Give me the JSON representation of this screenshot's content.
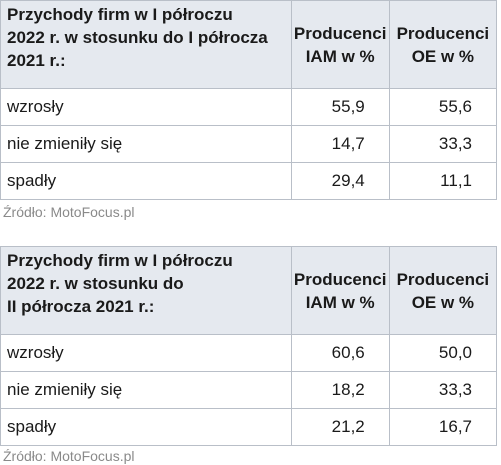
{
  "tables": [
    {
      "header": {
        "col1_lines": [
          "Przychody firm w I półroczu",
          "2022 r. w stosunku do I półrocza",
          "2021 r.:"
        ],
        "col2_lines": [
          "Producenci",
          "IAM w %"
        ],
        "col3_lines": [
          "Producenci",
          "OE w %"
        ]
      },
      "rows": [
        {
          "label": "wzrosły",
          "iam": "55,9",
          "oe": "55,6"
        },
        {
          "label": "nie zmieniły się",
          "iam": "14,7",
          "oe": "33,3"
        },
        {
          "label": "spadły",
          "iam": "29,4",
          "oe": "11,1"
        }
      ],
      "source": "Źródło: MotoFocus.pl"
    },
    {
      "header": {
        "col1_lines": [
          "Przychody firm w I półroczu",
          "2022 r. w stosunku do",
          "II półrocza 2021 r.:"
        ],
        "col2_lines": [
          "Producenci",
          "IAM w %"
        ],
        "col3_lines": [
          "Producenci",
          "OE w %"
        ]
      },
      "rows": [
        {
          "label": "wzrosły",
          "iam": "60,6",
          "oe": "50,0"
        },
        {
          "label": "nie zmieniły się",
          "iam": "18,2",
          "oe": "33,3"
        },
        {
          "label": "spadły",
          "iam": "21,2",
          "oe": "16,7"
        }
      ],
      "source": "Źródło: MotoFocus.pl"
    }
  ]
}
